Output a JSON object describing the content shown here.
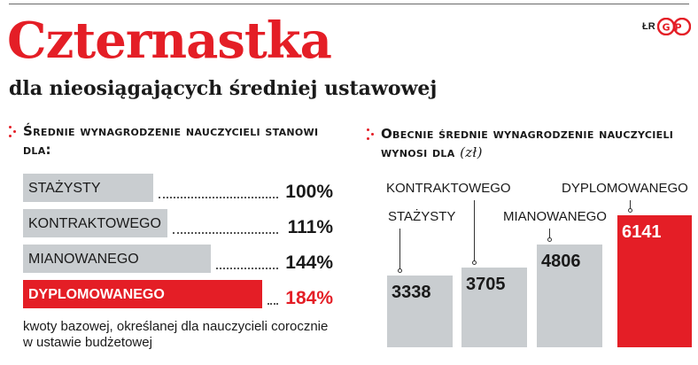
{
  "header": {
    "title": "Czternastka",
    "subtitle": "dla nieosiągających średniej ustawowej",
    "credit": "ŁR",
    "logo_text": "GP"
  },
  "colors": {
    "accent": "#e41e26",
    "bar_gray": "#c9cdd0",
    "text": "#1a1a1a"
  },
  "chart_data": [
    {
      "type": "bar",
      "orientation": "horizontal",
      "title": "Średnie wynagrodzenie nauczycieli stanowi dla:",
      "categories": [
        "STAŻYSTY",
        "KONTRAKTOWEGO",
        "MIANOWANEGO",
        "DYPLOMOWANEGO"
      ],
      "values": [
        100,
        111,
        144,
        184
      ],
      "value_labels": [
        "100%",
        "111%",
        "144%",
        "184%"
      ],
      "highlight": "DYPLOMOWANEGO",
      "footnote": "kwoty bazowej, określanej dla nauczycieli corocznie w ustawie budżetowej"
    },
    {
      "type": "bar",
      "orientation": "vertical",
      "title": "Obecnie średnie wynagrodzenie nauczycieli wynosi dla",
      "unit": "(zł)",
      "categories": [
        "STAŻYSTY",
        "KONTRAKTOWEGO",
        "MIANOWANEGO",
        "DYPLOMOWANEGO"
      ],
      "values": [
        3338,
        3705,
        4806,
        6141
      ],
      "value_labels": [
        "3338",
        "3705",
        "4806",
        "6141"
      ],
      "highlight": "DYPLOMOWANEGO"
    }
  ]
}
